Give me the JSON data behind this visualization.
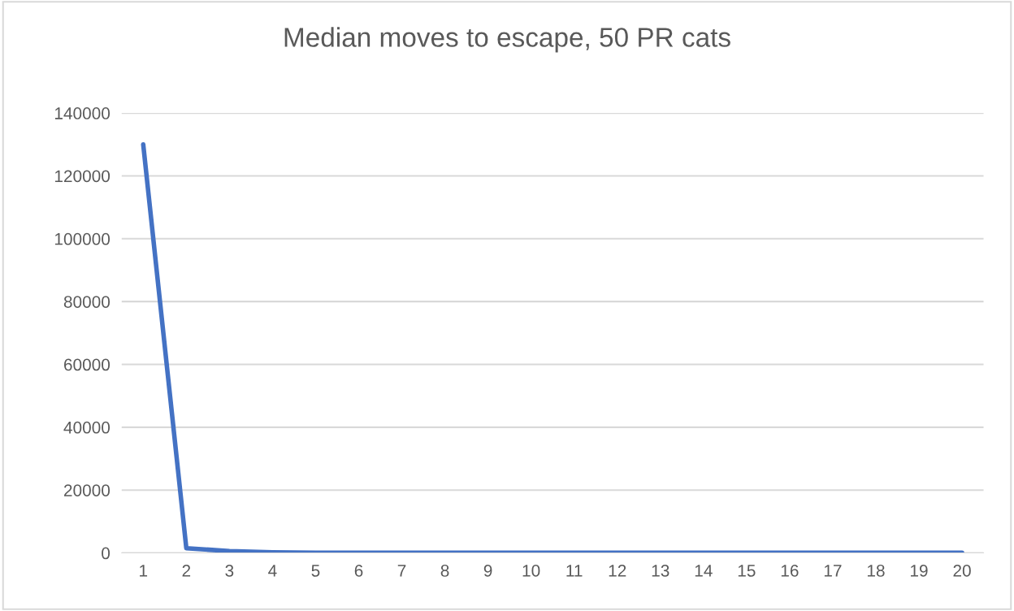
{
  "chart_data": {
    "type": "line",
    "title": "Median moves to escape, 50 PR cats",
    "categories": [
      "1",
      "2",
      "3",
      "4",
      "5",
      "6",
      "7",
      "8",
      "9",
      "10",
      "11",
      "12",
      "13",
      "14",
      "15",
      "16",
      "17",
      "18",
      "19",
      "20"
    ],
    "series": [
      {
        "color": "#4472c4",
        "values": [
          130000,
          1500,
          600,
          200,
          100,
          100,
          100,
          100,
          100,
          100,
          100,
          100,
          100,
          100,
          100,
          100,
          100,
          100,
          100,
          100
        ]
      }
    ],
    "ylim": [
      0,
      140000
    ],
    "yticks": [
      0,
      20000,
      40000,
      60000,
      80000,
      100000,
      120000,
      140000
    ],
    "grid": "y",
    "legend": false,
    "marker": "none",
    "line_style": "solid"
  }
}
